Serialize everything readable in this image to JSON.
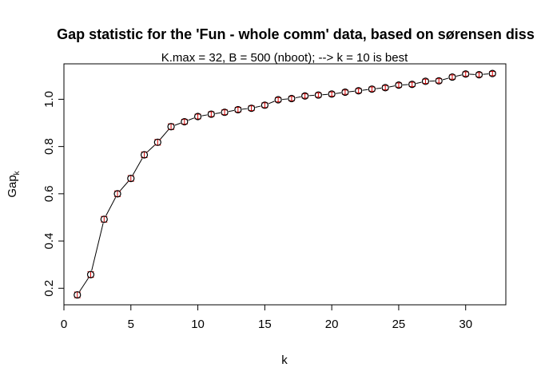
{
  "chart_data": {
    "type": "scatter",
    "title": "Gap statistic for the 'Fun - whole comm' data, based on sørensen diss",
    "subtitle": "K.max = 32, B = 500 (nboot); --> k = 10 is best",
    "xlabel": "k",
    "ylabel": "Gap",
    "ylabel_subscript": "k",
    "xlim": [
      0,
      33
    ],
    "ylim": [
      0.13,
      1.15
    ],
    "x_ticks": [
      0,
      5,
      10,
      15,
      20,
      25,
      30
    ],
    "y_ticks": [
      0.2,
      0.4,
      0.6,
      0.8,
      1.0
    ],
    "y_tick_labels": [
      "0.2",
      "0.4",
      "0.6",
      "0.8",
      "1.0"
    ],
    "series": [
      {
        "x": [
          1,
          2,
          3,
          4,
          5,
          6,
          7,
          8,
          9,
          10,
          11,
          12,
          13,
          14,
          15,
          16,
          17,
          18,
          19,
          20,
          21,
          22,
          23,
          24,
          25,
          26,
          27,
          28,
          29,
          30,
          31,
          32
        ],
        "values": [
          0.172,
          0.258,
          0.492,
          0.6,
          0.665,
          0.765,
          0.818,
          0.884,
          0.905,
          0.927,
          0.937,
          0.945,
          0.956,
          0.962,
          0.975,
          0.998,
          1.003,
          1.014,
          1.018,
          1.022,
          1.03,
          1.036,
          1.043,
          1.049,
          1.06,
          1.063,
          1.076,
          1.078,
          1.094,
          1.107,
          1.104,
          1.109
        ],
        "se": [
          0.012,
          0.012,
          0.012,
          0.012,
          0.012,
          0.012,
          0.012,
          0.012,
          0.01,
          0.01,
          0.01,
          0.01,
          0.01,
          0.01,
          0.01,
          0.009,
          0.009,
          0.009,
          0.009,
          0.009,
          0.009,
          0.009,
          0.009,
          0.009,
          0.009,
          0.009,
          0.009,
          0.009,
          0.009,
          0.009,
          0.009,
          0.009
        ]
      }
    ],
    "colors": {
      "point": "#000000",
      "line": "#000000",
      "errorbar": "#cc0000",
      "axis": "#000000"
    },
    "grid": false,
    "legend": "none"
  }
}
